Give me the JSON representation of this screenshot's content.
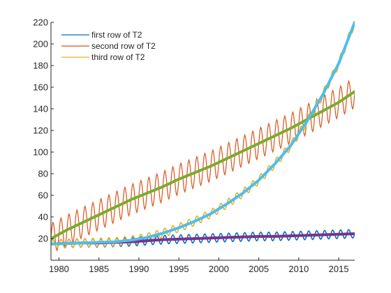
{
  "chart_data": {
    "type": "line",
    "xlim": [
      1979,
      2017
    ],
    "ylim": [
      0,
      220
    ],
    "x_ticks": [
      1980,
      1985,
      1990,
      1995,
      2000,
      2005,
      2010,
      2015
    ],
    "y_ticks": [
      20,
      40,
      60,
      80,
      100,
      120,
      140,
      160,
      180,
      200,
      220
    ],
    "grid": false,
    "legend_location": "top-left",
    "series": [
      {
        "name": "first row of T2",
        "color": "#0072BD",
        "x": [
          1979,
          1981,
          1983,
          1985,
          1987,
          1989,
          1991,
          1993,
          1995,
          1997,
          1999,
          2001,
          2003,
          2005,
          2007,
          2009,
          2011,
          2013,
          2015,
          2017
        ],
        "y": [
          15,
          15.5,
          16,
          16,
          16.5,
          17,
          18,
          19,
          19.5,
          20,
          20.5,
          21,
          21.5,
          22,
          22,
          22.5,
          23,
          23.5,
          24,
          24.5
        ],
        "amplitude": 4
      },
      {
        "name": "second row of T2",
        "color": "#D95319",
        "x": [
          1979,
          1981,
          1983,
          1985,
          1987,
          1989,
          1991,
          1993,
          1995,
          1997,
          1999,
          2001,
          2003,
          2005,
          2007,
          2009,
          2011,
          2013,
          2015,
          2017
        ],
        "y": [
          20,
          28,
          35,
          42,
          49,
          56,
          62,
          68,
          75,
          81,
          87,
          94,
          101,
          108,
          115,
          122,
          130,
          138,
          146,
          155
        ],
        "amplitude": 14
      },
      {
        "name": "third row of T2",
        "color": "#EDB120",
        "x": [
          1979,
          1981,
          1983,
          1985,
          1987,
          1989,
          1991,
          1993,
          1995,
          1997,
          1999,
          2001,
          2003,
          2005,
          2007,
          2009,
          2011,
          2013,
          2015,
          2017
        ],
        "y": [
          15,
          15.5,
          16,
          16.5,
          17,
          18.5,
          21,
          25,
          30,
          36,
          43,
          52,
          62,
          74,
          89,
          106,
          128,
          153,
          182,
          220
        ],
        "amplitude": 4
      }
    ],
    "trend_lines": [
      {
        "color": "#77AC30",
        "x": [
          1979,
          1981,
          1983,
          1985,
          1987,
          1989,
          1991,
          1993,
          1995,
          1997,
          1999,
          2001,
          2003,
          2005,
          2007,
          2009,
          2011,
          2013,
          2015,
          2017
        ],
        "y": [
          20,
          28,
          35,
          42,
          49,
          56,
          62,
          68,
          75,
          81,
          87,
          94,
          101,
          108,
          115,
          122,
          130,
          138,
          146,
          156
        ]
      },
      {
        "color": "#7E2F8E",
        "x": [
          1979,
          1981,
          1983,
          1985,
          1987,
          1989,
          1991,
          1993,
          1995,
          1997,
          1999,
          2001,
          2003,
          2005,
          2007,
          2009,
          2011,
          2013,
          2015,
          2017
        ],
        "y": [
          15,
          15.5,
          16,
          16,
          16.5,
          17,
          18,
          19,
          19.5,
          20,
          20.5,
          21,
          21.5,
          22,
          22,
          22.5,
          23,
          23.5,
          24,
          24.5
        ]
      },
      {
        "color": "#4DBEEE",
        "x": [
          1979,
          1981,
          1983,
          1985,
          1987,
          1989,
          1991,
          1993,
          1995,
          1997,
          1999,
          2001,
          2003,
          2005,
          2007,
          2009,
          2011,
          2013,
          2015,
          2017
        ],
        "y": [
          15,
          15.5,
          16,
          16.5,
          17,
          18.5,
          21,
          25,
          30,
          36,
          43,
          52,
          62,
          74,
          89,
          106,
          128,
          153,
          182,
          220
        ]
      }
    ]
  }
}
